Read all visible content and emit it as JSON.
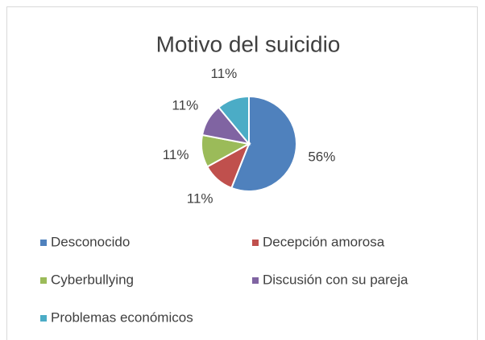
{
  "chart_data": {
    "type": "pie",
    "title": "Motivo del suicidio",
    "categories": [
      "Desconocido",
      "Decepción amorosa",
      "Cyberbullying",
      "Discusión con su pareja",
      "Problemas económicos"
    ],
    "values": [
      56,
      11,
      11,
      11,
      11
    ],
    "value_labels": [
      "56%",
      "11%",
      "11%",
      "11%",
      "11%"
    ],
    "colors": [
      "#4f81bd",
      "#c0504d",
      "#9bbb59",
      "#8064a2",
      "#4bacc6"
    ],
    "legend": "bottom"
  }
}
